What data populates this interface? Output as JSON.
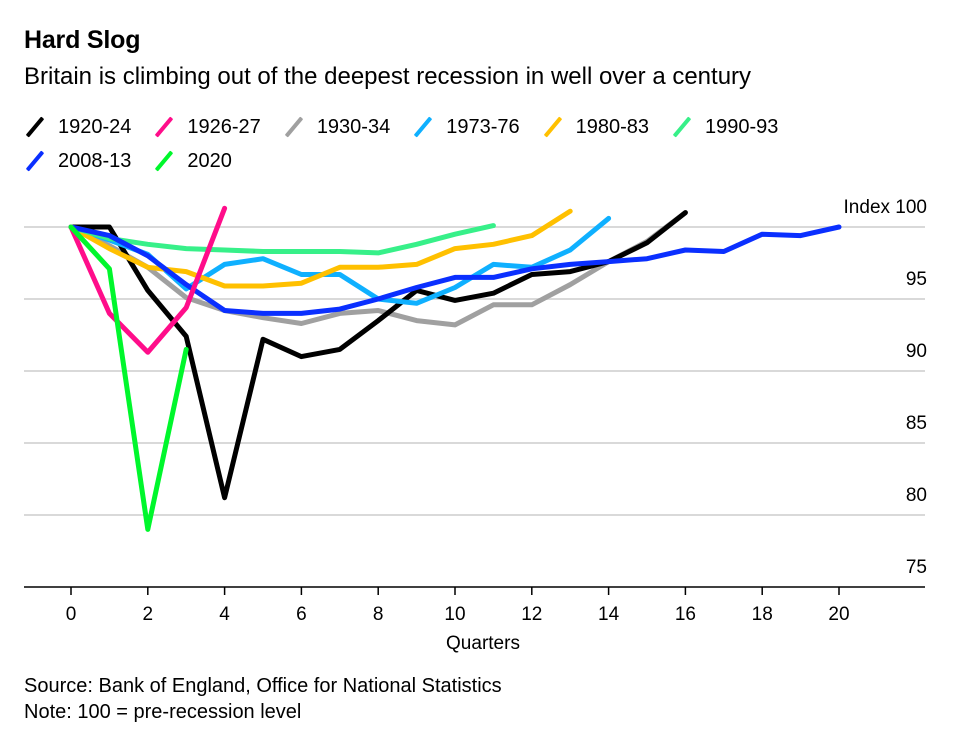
{
  "header": {
    "title": "Hard Slog",
    "subtitle": "Britain is climbing out of the deepest recession in well over a century"
  },
  "footer": {
    "source": "Source: Bank of England, Office for National Statistics",
    "note": "Note: 100 = pre-recession level"
  },
  "chart_data": {
    "type": "line",
    "title": "Hard Slog",
    "subtitle": "Britain is climbing out of the deepest recession in well over a century",
    "xlabel": "Quarters",
    "ylabel": "Index",
    "y_unit_label": "Index 100",
    "xlim": [
      -1.5,
      22
    ],
    "ylim": [
      75,
      101.5
    ],
    "x_ticks": [
      0,
      2,
      4,
      6,
      8,
      10,
      12,
      14,
      16,
      18,
      20
    ],
    "y_ticks": [
      75,
      80,
      85,
      90,
      95,
      100
    ],
    "y_tick_labels": [
      "75",
      "80",
      "85",
      "90",
      "95",
      "Index 100"
    ],
    "grid": true,
    "legend_position": "top-left",
    "series": [
      {
        "name": "1920-24",
        "color": "#000000",
        "values": [
          100,
          100,
          95.6,
          92.4,
          81.2,
          92.2,
          91.0,
          91.5,
          93.5,
          95.6,
          94.9,
          95.4,
          96.7,
          96.9,
          97.6,
          98.9,
          101.0
        ]
      },
      {
        "name": "1926-27",
        "color": "#ff0d8a",
        "values": [
          100,
          94.0,
          91.3,
          94.4,
          101.3
        ]
      },
      {
        "name": "1930-34",
        "color": "#a0a0a0",
        "values": [
          100,
          98.7,
          97.2,
          95.1,
          94.2,
          93.7,
          93.3,
          94.0,
          94.2,
          93.5,
          93.2,
          94.6,
          94.6,
          96.0,
          97.6,
          99.0,
          101.0
        ]
      },
      {
        "name": "1973-76",
        "color": "#0fb0ff",
        "values": [
          100,
          99.1,
          98.1,
          95.7,
          97.4,
          97.8,
          96.7,
          96.7,
          95.0,
          94.7,
          95.8,
          97.4,
          97.2,
          98.4,
          100.6
        ]
      },
      {
        "name": "1980-83",
        "color": "#ffc000",
        "values": [
          100,
          98.5,
          97.2,
          96.9,
          95.9,
          95.9,
          96.1,
          97.2,
          97.2,
          97.4,
          98.5,
          98.8,
          99.4,
          101.1
        ]
      },
      {
        "name": "1990-93",
        "color": "#37f089",
        "values": [
          100,
          99.2,
          98.8,
          98.5,
          98.4,
          98.3,
          98.3,
          98.3,
          98.2,
          98.8,
          99.5,
          100.1
        ]
      },
      {
        "name": "2008-13",
        "color": "#0a2fff",
        "values": [
          100,
          99.4,
          98.0,
          96.0,
          94.2,
          94.0,
          94.0,
          94.3,
          95.0,
          95.8,
          96.5,
          96.5,
          97.1,
          97.4,
          97.6,
          97.8,
          98.4,
          98.3,
          99.5,
          99.4,
          100.0
        ]
      },
      {
        "name": "2020",
        "color": "#00f72c",
        "values": [
          100,
          97.1,
          79.0,
          91.5
        ]
      }
    ]
  }
}
